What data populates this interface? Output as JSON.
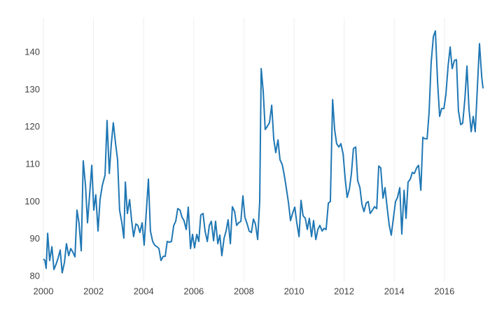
{
  "chart_data": {
    "type": "line",
    "xlim": [
      2000,
      2017.54
    ],
    "ylim": [
      78.7,
      149.4
    ],
    "xticks": [
      2000,
      2002,
      2004,
      2006,
      2008,
      2010,
      2012,
      2014,
      2016
    ],
    "yticks": [
      80,
      90,
      100,
      110,
      120,
      130,
      140
    ],
    "xgrid": true,
    "ygrid": false,
    "x": [
      2000.0,
      2000.06,
      2000.11,
      2000.17,
      2000.25,
      2000.34,
      2000.42,
      2000.5,
      2000.59,
      2000.67,
      2000.75,
      2000.84,
      2000.92,
      2001.01,
      2001.09,
      2001.17,
      2001.26,
      2001.34,
      2001.42,
      2001.51,
      2001.59,
      2001.68,
      2001.76,
      2001.84,
      2001.93,
      2002.01,
      2002.09,
      2002.18,
      2002.26,
      2002.35,
      2002.46,
      2002.54,
      2002.63,
      2002.71,
      2002.79,
      2002.88,
      2002.96,
      2003.04,
      2003.13,
      2003.21,
      2003.27,
      2003.35,
      2003.44,
      2003.52,
      2003.6,
      2003.69,
      2003.77,
      2003.85,
      2003.94,
      2004.02,
      2004.11,
      2004.19,
      2004.27,
      2004.36,
      2004.44,
      2004.53,
      2004.61,
      2004.69,
      2004.78,
      2004.86,
      2004.94,
      2005.03,
      2005.11,
      2005.2,
      2005.28,
      2005.36,
      2005.45,
      2005.53,
      2005.61,
      2005.7,
      2005.78,
      2005.87,
      2005.95,
      2006.03,
      2006.12,
      2006.2,
      2006.28,
      2006.37,
      2006.45,
      2006.54,
      2006.62,
      2006.7,
      2006.79,
      2006.87,
      2006.96,
      2007.04,
      2007.12,
      2007.21,
      2007.29,
      2007.37,
      2007.46,
      2007.54,
      2007.63,
      2007.71,
      2007.79,
      2007.88,
      2007.96,
      2008.04,
      2008.13,
      2008.21,
      2008.3,
      2008.38,
      2008.46,
      2008.55,
      2008.63,
      2008.69,
      2008.77,
      2008.85,
      2008.94,
      2009.02,
      2009.11,
      2009.19,
      2009.27,
      2009.36,
      2009.44,
      2009.53,
      2009.61,
      2009.69,
      2009.78,
      2009.86,
      2009.94,
      2010.03,
      2010.11,
      2010.2,
      2010.28,
      2010.36,
      2010.45,
      2010.53,
      2010.61,
      2010.7,
      2010.78,
      2010.87,
      2010.95,
      2011.03,
      2011.12,
      2011.2,
      2011.28,
      2011.37,
      2011.45,
      2011.54,
      2011.62,
      2011.7,
      2011.79,
      2011.87,
      2011.96,
      2012.04,
      2012.12,
      2012.21,
      2012.29,
      2012.37,
      2012.46,
      2012.54,
      2012.63,
      2012.71,
      2012.79,
      2012.88,
      2012.96,
      2013.04,
      2013.13,
      2013.21,
      2013.3,
      2013.38,
      2013.46,
      2013.55,
      2013.63,
      2013.72,
      2013.8,
      2013.88,
      2013.97,
      2014.05,
      2014.13,
      2014.22,
      2014.3,
      2014.39,
      2014.47,
      2014.55,
      2014.64,
      2014.72,
      2014.8,
      2014.89,
      2014.97,
      2015.06,
      2015.14,
      2015.22,
      2015.31,
      2015.39,
      2015.47,
      2015.56,
      2015.64,
      2015.73,
      2015.81,
      2015.89,
      2015.98,
      2016.06,
      2016.15,
      2016.23,
      2016.31,
      2016.4,
      2016.48,
      2016.56,
      2016.65,
      2016.73,
      2016.82,
      2016.9,
      2016.98,
      2017.07,
      2017.15,
      2017.23,
      2017.32,
      2017.4,
      2017.49,
      2017.54
    ],
    "series": [
      {
        "color": "#1f77b4",
        "values": [
          84.7,
          84.3,
          82.2,
          91.6,
          84.3,
          88,
          81.9,
          83.2,
          85,
          87.1,
          81,
          83.8,
          88.8,
          85.6,
          87.5,
          86.6,
          85.3,
          97.8,
          94.4,
          86.9,
          111,
          104.4,
          94.4,
          101.6,
          109.8,
          97.8,
          101.9,
          92.2,
          100.6,
          104.4,
          107.2,
          121.8,
          107.6,
          115.6,
          121.2,
          115.6,
          111.3,
          97.8,
          94.4,
          90.3,
          105.3,
          96.9,
          100.6,
          95,
          90.7,
          94.1,
          93.7,
          91.8,
          94.4,
          88.4,
          97.8,
          106.1,
          92.2,
          89.4,
          88.4,
          88,
          87.5,
          84.3,
          85.4,
          85.4,
          89.4,
          89.2,
          89.4,
          93.7,
          94.8,
          98.2,
          97.8,
          95.9,
          95,
          92.6,
          98.6,
          87.5,
          91.3,
          87.7,
          91.3,
          89.4,
          96.5,
          96.9,
          92.2,
          89.4,
          93.7,
          94.8,
          89.6,
          94.8,
          88.8,
          91.1,
          85.6,
          90.3,
          92.2,
          95.2,
          88.8,
          98.7,
          97.4,
          93.7,
          94.4,
          94.8,
          101.6,
          95.9,
          94.1,
          92.2,
          91.8,
          95.4,
          94.1,
          89.9,
          100.1,
          135.7,
          129.7,
          119.4,
          120.3,
          121.2,
          125.9,
          116.9,
          113.2,
          116.6,
          111.3,
          110,
          107.2,
          103.8,
          99.7,
          95,
          96.9,
          98.6,
          94.4,
          90.7,
          100.4,
          96.3,
          95.6,
          92.6,
          95.6,
          90.7,
          95,
          89.9,
          92.6,
          93.7,
          92.2,
          92.9,
          92.6,
          99.7,
          100.1,
          127.4,
          119.4,
          115.6,
          114.7,
          115.6,
          112.8,
          106.3,
          101.2,
          103.5,
          107.6,
          114.3,
          114.7,
          105.7,
          103.8,
          99.3,
          97.4,
          99.7,
          100.1,
          96.9,
          97.8,
          98.7,
          98.2,
          109.6,
          109.1,
          101,
          103.8,
          98.2,
          93.7,
          91.1,
          95.9,
          100.1,
          101.2,
          103.8,
          91.4,
          103.1,
          95.6,
          105.3,
          106.1,
          107.9,
          107.6,
          109.1,
          109.8,
          103.1,
          117.3,
          116.9,
          116.9,
          124.1,
          137.2,
          144.3,
          145.8,
          131.9,
          122.9,
          125,
          125,
          128.8,
          136.6,
          141.5,
          135.7,
          137.9,
          138.1,
          124.4,
          120.7,
          121.1,
          127.8,
          136.4,
          125,
          118.8,
          122.9,
          118.8,
          131.2,
          142.4,
          133.4,
          130.4
        ]
      }
    ]
  }
}
